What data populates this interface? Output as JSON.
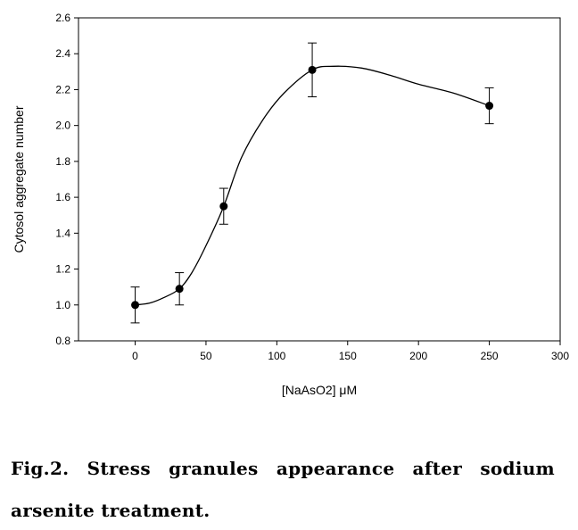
{
  "chart_data": {
    "type": "line",
    "xlabel": "[NaAsO2] μM",
    "ylabel": "Cytosol aggregate number",
    "xlim": [
      -40,
      300
    ],
    "ylim": [
      0.8,
      2.6
    ],
    "xticks": [
      0,
      50,
      100,
      150,
      200,
      250,
      300
    ],
    "yticks": [
      0.8,
      1.0,
      1.2,
      1.4,
      1.6,
      1.8,
      2.0,
      2.2,
      2.4,
      2.6
    ],
    "points": [
      {
        "x": 0,
        "y": 1.0,
        "err": 0.1
      },
      {
        "x": 31.25,
        "y": 1.09,
        "err": 0.09
      },
      {
        "x": 62.5,
        "y": 1.55,
        "err": 0.1
      },
      {
        "x": 125,
        "y": 2.31,
        "err": 0.15
      },
      {
        "x": 250,
        "y": 2.11,
        "err": 0.1
      }
    ],
    "curve": [
      [
        0,
        1.0
      ],
      [
        10,
        1.01
      ],
      [
        20,
        1.04
      ],
      [
        31.25,
        1.09
      ],
      [
        40,
        1.18
      ],
      [
        50,
        1.33
      ],
      [
        62.5,
        1.55
      ],
      [
        75,
        1.82
      ],
      [
        90,
        2.03
      ],
      [
        105,
        2.18
      ],
      [
        125,
        2.31
      ],
      [
        140,
        2.33
      ],
      [
        160,
        2.32
      ],
      [
        180,
        2.28
      ],
      [
        200,
        2.23
      ],
      [
        225,
        2.18
      ],
      [
        250,
        2.11
      ]
    ],
    "grid": false,
    "legend": false
  },
  "caption": {
    "line1": "Fig.2. Stress granules appearance after sodium",
    "line2": "arsenite treatment."
  }
}
